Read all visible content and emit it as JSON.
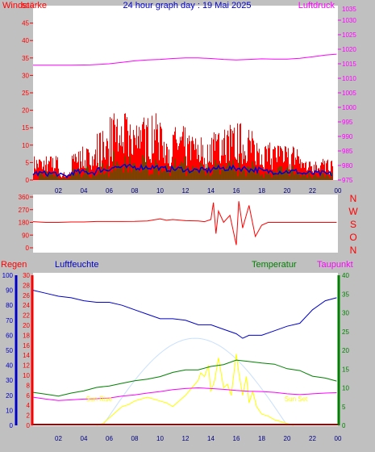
{
  "title": "24 hour graph day : 19 Mai 2025",
  "colors": {
    "background": "#c0c0c0",
    "plot_bg": "#ffffff",
    "red": "#ff0000",
    "magenta": "#ff00ff",
    "blue": "#0000c8",
    "green": "#008000",
    "yellow": "#ffff00",
    "lightblue": "#c8e0ff",
    "darkred": "#aa0000"
  },
  "labels": {
    "windstaerke": "Windstärke",
    "luftdruck": "Luftdruck",
    "regen": "Regen",
    "luftfeuchte": "Luftfeuchte",
    "temperatur": "Temperatur",
    "taupunkt": "Taupunkt",
    "sun_rise": "Sun Rise",
    "sun_set": "Sun Set"
  },
  "x_ticks": [
    "02",
    "04",
    "06",
    "08",
    "10",
    "12",
    "14",
    "16",
    "18",
    "20",
    "22",
    "00"
  ],
  "chart_data": [
    {
      "type": "line",
      "title": "24 hour graph day : 19 Mai 2025",
      "x_range": [
        0,
        24
      ],
      "left_axis": {
        "label": "Windstärke",
        "range": [
          0,
          50
        ],
        "ticks": [
          0,
          5,
          10,
          15,
          20,
          25,
          30,
          35,
          40,
          45,
          50
        ]
      },
      "right_axis": {
        "label": "Luftdruck",
        "range": [
          975,
          1035
        ],
        "ticks": [
          975,
          980,
          985,
          990,
          995,
          1000,
          1005,
          1010,
          1015,
          1020,
          1025,
          1030,
          1035
        ]
      },
      "series": [
        {
          "name": "Luftdruck",
          "axis": "right",
          "color": "#ff00ff",
          "x": [
            0,
            3,
            4.5,
            6,
            7,
            8,
            9,
            10,
            11,
            12,
            13,
            14,
            15,
            16,
            17,
            18,
            19,
            20,
            21,
            22,
            23,
            23.9
          ],
          "y": [
            1014.5,
            1014.5,
            1014.6,
            1015.0,
            1015.5,
            1016.0,
            1016.3,
            1016.5,
            1016.8,
            1017.0,
            1017.0,
            1016.8,
            1016.5,
            1016.3,
            1016.5,
            1016.7,
            1016.6,
            1016.6,
            1016.9,
            1017.4,
            1018.0,
            1018.3
          ]
        }
      ],
      "bars": {
        "name": "Windstärke",
        "color": "#ff0000",
        "values_approx": "gusts 0-20"
      }
    },
    {
      "type": "line",
      "x_range": [
        0,
        24
      ],
      "left_axis": {
        "range": [
          0,
          360
        ],
        "ticks": [
          0,
          90,
          180,
          270,
          360
        ]
      },
      "right_axis": {
        "ticks": [
          "N",
          "W",
          "S",
          "O",
          "N"
        ]
      },
      "series": [
        {
          "name": "Windrichtung",
          "color": "#ff0000",
          "x": [
            0,
            1,
            2,
            3,
            4,
            5,
            6,
            7,
            8,
            9,
            10,
            10.5,
            11,
            12,
            13,
            13.5,
            14,
            14.2,
            14.4,
            14.6,
            15,
            15.5,
            16,
            16.2,
            16.5,
            17,
            17.5,
            18,
            18.5,
            19,
            20,
            21,
            22,
            23,
            23.9
          ],
          "y": [
            185,
            180,
            180,
            183,
            183,
            186,
            186,
            186,
            187,
            190,
            205,
            195,
            200,
            192,
            190,
            185,
            200,
            320,
            100,
            260,
            180,
            230,
            20,
            330,
            140,
            300,
            80,
            160,
            180,
            180,
            180,
            180,
            180,
            180,
            180
          ]
        }
      ]
    },
    {
      "type": "line",
      "x_range": [
        0,
        24
      ],
      "axes": {
        "humidity": {
          "label": "Luftfeuchte",
          "range": [
            0,
            100
          ],
          "ticks": [
            0,
            10,
            20,
            30,
            40,
            50,
            60,
            70,
            80,
            90,
            100
          ]
        },
        "rain": {
          "label": "Regen",
          "range": [
            0,
            30
          ],
          "ticks": [
            0,
            2,
            4,
            6,
            8,
            10,
            12,
            14,
            16,
            18,
            20,
            22,
            24,
            26,
            28,
            30
          ]
        },
        "temperature": {
          "label": "Temperatur",
          "range": [
            0,
            40
          ],
          "ticks": [
            0,
            5,
            10,
            15,
            20,
            25,
            30,
            35,
            40
          ]
        }
      },
      "series": [
        {
          "name": "Luftfeuchte",
          "axis": "humidity",
          "color": "#0000c8",
          "x": [
            0,
            1,
            2,
            3,
            4,
            5,
            6,
            7,
            8,
            9,
            10,
            11,
            12,
            13,
            14,
            15,
            16,
            16.5,
            17,
            18,
            19,
            20,
            21,
            22,
            23,
            23.9
          ],
          "y": [
            90,
            88,
            86,
            85,
            83,
            82,
            82,
            80,
            77,
            74,
            71,
            71,
            70,
            67,
            67,
            64,
            61,
            58,
            60,
            60,
            63,
            66,
            68,
            77,
            83,
            85
          ]
        },
        {
          "name": "Temperatur",
          "axis": "temperature",
          "color": "#008000",
          "x": [
            0,
            1,
            2,
            3,
            4,
            5,
            6,
            7,
            8,
            9,
            10,
            11,
            12,
            13,
            14,
            15,
            16,
            17,
            18,
            19,
            20,
            21,
            22,
            23,
            23.9
          ],
          "y": [
            8.8,
            8.3,
            7.8,
            8.6,
            9.2,
            10.1,
            10.5,
            11.2,
            11.9,
            12.3,
            13.0,
            14.1,
            14.8,
            14.8,
            15.7,
            16.2,
            17.4,
            17.0,
            16.6,
            16.3,
            15.1,
            14.6,
            13.1,
            12.6,
            11.8
          ]
        },
        {
          "name": "Taupunkt",
          "axis": "temperature",
          "color": "#ff00ff",
          "x": [
            0,
            1,
            2,
            3,
            4,
            5,
            6,
            7,
            8,
            9,
            10,
            11,
            12,
            13,
            14,
            15,
            16,
            17,
            18,
            19,
            20,
            21,
            22,
            23,
            23.9
          ],
          "y": [
            7.5,
            7.0,
            6.6,
            6.8,
            7.0,
            7.1,
            7.3,
            7.8,
            8.1,
            8.6,
            9.0,
            9.5,
            9.8,
            10.0,
            9.8,
            9.6,
            9.3,
            9.1,
            9.0,
            8.8,
            8.4,
            8.2,
            8.4,
            8.6,
            8.7
          ]
        },
        {
          "name": "Solar",
          "axis": "temperature",
          "color": "#ffff00",
          "x": [
            5,
            5.5,
            6,
            6.5,
            7,
            7.5,
            8,
            8.5,
            9,
            9.5,
            10,
            10.5,
            11,
            11.5,
            12,
            12.5,
            13,
            13.2,
            13.5,
            13.8,
            14,
            14.3,
            14.6,
            15,
            15.3,
            15.6,
            16,
            16.2,
            16.5,
            16.8,
            17,
            17.3,
            17.6,
            18,
            18.5,
            19,
            19.5,
            20,
            20.5
          ],
          "y": [
            0,
            0.5,
            2,
            3.5,
            5,
            5.5,
            6.5,
            7,
            7.5,
            7,
            6.5,
            6,
            5,
            6.5,
            8,
            10,
            12,
            14,
            13,
            16,
            9,
            12,
            18,
            10,
            11,
            8,
            19,
            14,
            8,
            13,
            6,
            9,
            5,
            3,
            2.5,
            1.5,
            1,
            0.5,
            0
          ]
        }
      ],
      "annotations": [
        {
          "text": "Sun Rise",
          "x": 5.2
        },
        {
          "text": "Sun Set",
          "x": 20.7
        }
      ]
    }
  ]
}
